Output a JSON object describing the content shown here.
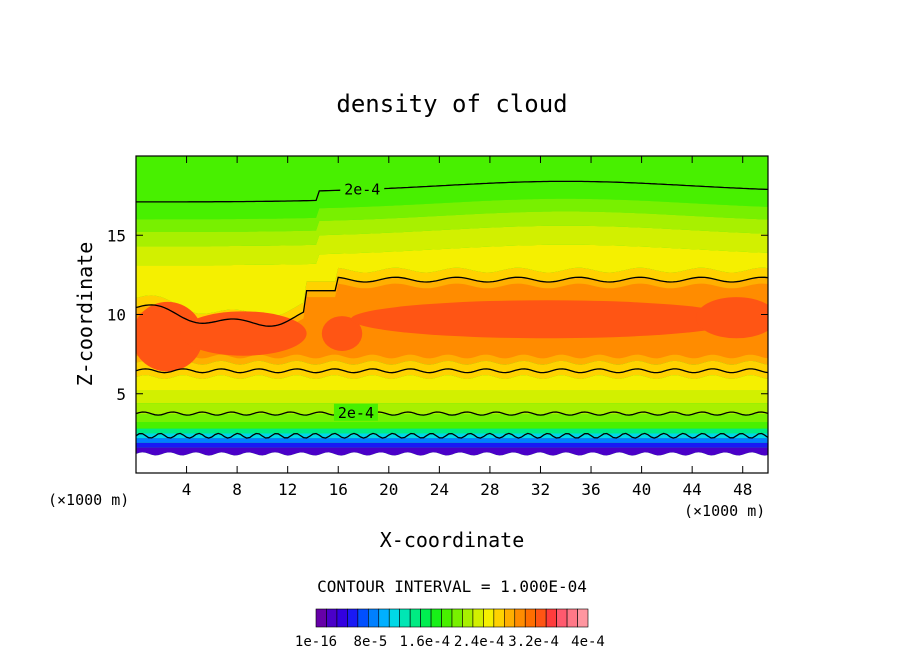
{
  "chart_data": {
    "type": "heatmap",
    "title": "density of cloud",
    "xlabel": "X-coordinate",
    "ylabel": "Z-coordinate",
    "x_unit_left": "(×1000 m)",
    "x_unit_right": "(×1000 m)",
    "xlim": [
      0,
      50
    ],
    "ylim": [
      0,
      20
    ],
    "xticks": [
      4,
      8,
      12,
      16,
      20,
      24,
      28,
      32,
      36,
      40,
      44,
      48
    ],
    "yticks": [
      5,
      10,
      15
    ],
    "contour_interval_text": "CONTOUR INTERVAL = 1.000E-04",
    "contour_labels": [
      {
        "text": "2e-4",
        "x": 17.9,
        "z": 17.9
      },
      {
        "text": "2e-4",
        "x": 17.4,
        "z": 3.8
      }
    ],
    "colorbar": {
      "colors": [
        "#6600a8",
        "#4a00c8",
        "#3300e0",
        "#1a1af5",
        "#0050ff",
        "#0080ff",
        "#00b0ff",
        "#00d8e6",
        "#00e6b4",
        "#00eb82",
        "#00ee50",
        "#18f018",
        "#48f000",
        "#78f000",
        "#a8f000",
        "#d2f000",
        "#f5f000",
        "#ffd200",
        "#ffaf00",
        "#ff8c00",
        "#ff6e00",
        "#ff5514",
        "#ff3c3c",
        "#ff5a6e",
        "#ff7887",
        "#ff96a0"
      ],
      "labels": [
        "1e-16",
        "8e-5",
        "1.6e-4",
        "2.4e-4",
        "3.2e-4",
        "4e-4"
      ]
    }
  }
}
